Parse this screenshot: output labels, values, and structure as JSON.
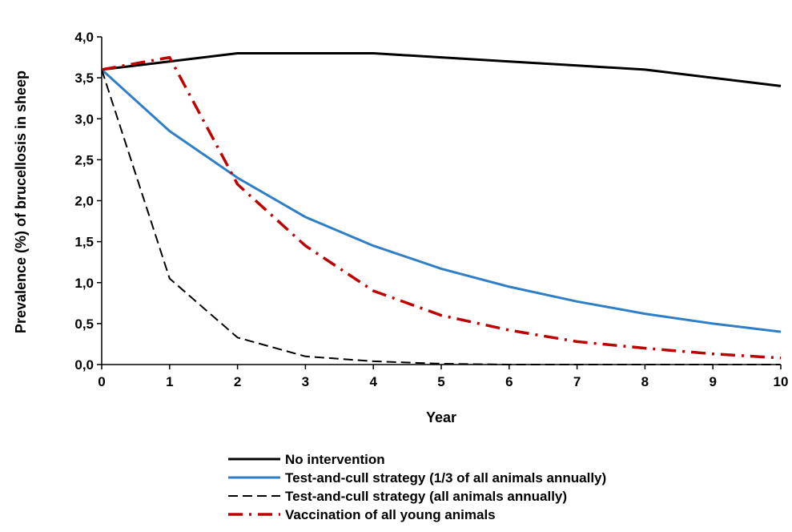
{
  "chart_data": {
    "type": "line",
    "title": "",
    "xlabel": "Year",
    "ylabel": "Prevalence (%) of brucellosis in sheep",
    "xlim": [
      0,
      10
    ],
    "ylim": [
      0,
      4
    ],
    "x": [
      0,
      1,
      2,
      3,
      4,
      5,
      6,
      7,
      8,
      9,
      10
    ],
    "x_tick_labels": [
      "0",
      "1",
      "2",
      "3",
      "4",
      "5",
      "6",
      "7",
      "8",
      "9",
      "10"
    ],
    "y_ticks": [
      0,
      0.5,
      1,
      1.5,
      2,
      2.5,
      3,
      3.5,
      4
    ],
    "y_tick_labels": [
      "0,0",
      "0,5",
      "1,0",
      "1,5",
      "2,0",
      "2,5",
      "3,0",
      "3,5",
      "4,0"
    ],
    "grid": false,
    "legend_position": "bottom",
    "series": [
      {
        "name": "No intervention",
        "color": "#000000",
        "dash": "solid",
        "values": [
          3.6,
          3.7,
          3.8,
          3.8,
          3.8,
          3.75,
          3.7,
          3.65,
          3.6,
          3.5,
          3.4
        ]
      },
      {
        "name": "Test-and-cull strategy (1/3 of all animals annually)",
        "color": "#2e7fc7",
        "dash": "solid",
        "values": [
          3.6,
          2.85,
          2.28,
          1.8,
          1.45,
          1.17,
          0.95,
          0.77,
          0.62,
          0.5,
          0.4
        ]
      },
      {
        "name": "Test-and-cull strategy (all animals annually)",
        "color": "#000000",
        "dash": "dashed",
        "values": [
          3.6,
          1.05,
          0.33,
          0.1,
          0.04,
          0.01,
          0.0,
          0.0,
          0.0,
          0.0,
          0.0
        ]
      },
      {
        "name": "Vaccination of all young animals",
        "color": "#c00000",
        "dash": "dashdot",
        "values": [
          3.6,
          3.75,
          2.2,
          1.45,
          0.9,
          0.6,
          0.42,
          0.28,
          0.2,
          0.13,
          0.08
        ]
      }
    ]
  }
}
